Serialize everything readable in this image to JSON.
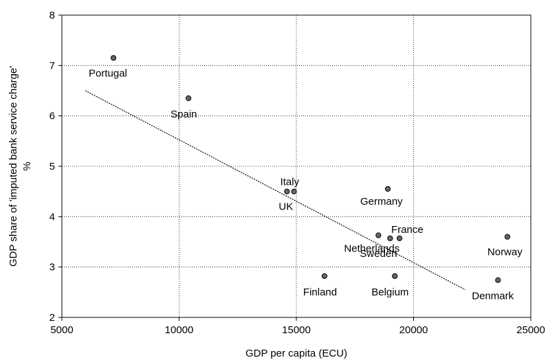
{
  "chart_data": {
    "type": "scatter",
    "xlabel": "GDP per capita (ECU)",
    "ylabel_line1": "GDP share of 'imputed bank service charge'",
    "ylabel_line2": "%",
    "xlim": [
      5000,
      25000
    ],
    "ylim": [
      2,
      8
    ],
    "x_ticks": [
      "5000",
      "10000",
      "15000",
      "20000",
      "25000"
    ],
    "y_ticks": [
      "2",
      "3",
      "4",
      "5",
      "6",
      "7",
      "8"
    ],
    "grid": true,
    "points": [
      {
        "label": "Portugal",
        "x": 7200,
        "y": 7.15
      },
      {
        "label": "Spain",
        "x": 10400,
        "y": 6.35
      },
      {
        "label": "Italy",
        "x": 14900,
        "y": 4.5
      },
      {
        "label": "UK",
        "x": 14600,
        "y": 4.5
      },
      {
        "label": "Germany",
        "x": 18900,
        "y": 4.55
      },
      {
        "label": "France",
        "x": 19400,
        "y": 3.57
      },
      {
        "label": "Netherlands",
        "x": 18500,
        "y": 3.63
      },
      {
        "label": "Sweden",
        "x": 19000,
        "y": 3.57
      },
      {
        "label": "Belgium",
        "x": 19200,
        "y": 2.82
      },
      {
        "label": "Finland",
        "x": 16200,
        "y": 2.82
      },
      {
        "label": "Norway",
        "x": 24000,
        "y": 3.6
      },
      {
        "label": "Denmark",
        "x": 23600,
        "y": 2.74
      }
    ],
    "trendline": {
      "x": [
        6000,
        22200
      ],
      "y": [
        6.5,
        2.55
      ]
    }
  }
}
